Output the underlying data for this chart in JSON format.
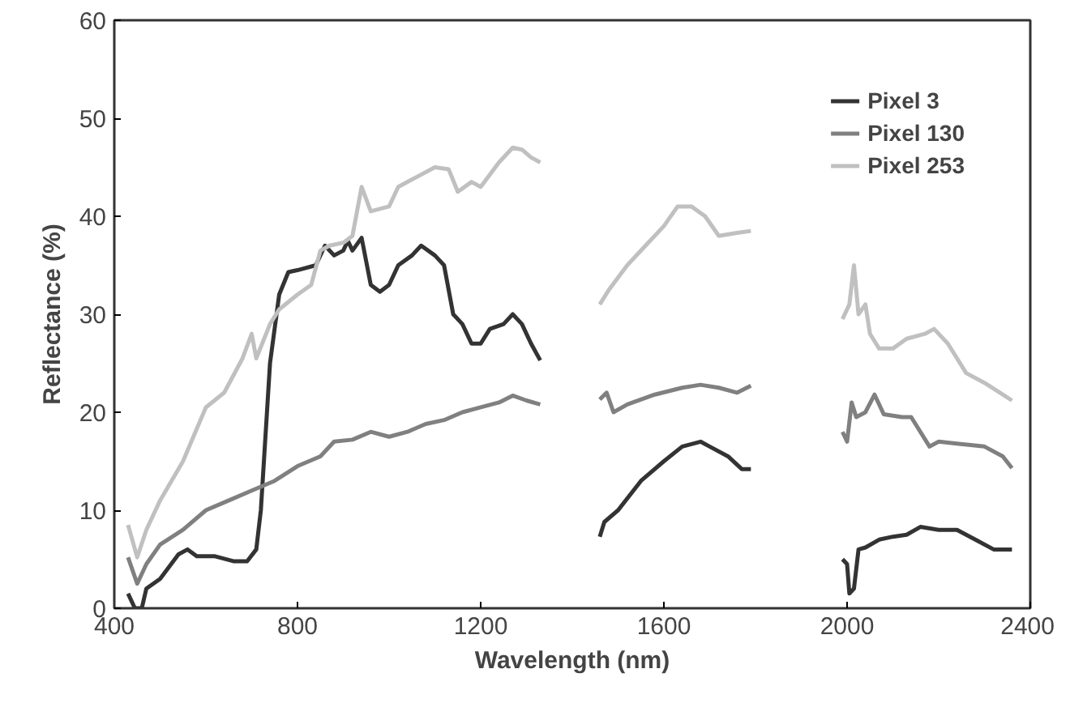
{
  "chart_data": {
    "type": "line",
    "xlabel": "Wavelength (nm)",
    "ylabel": "Reflectance (%)",
    "xlim": [
      400,
      2400
    ],
    "ylim": [
      0,
      60
    ],
    "xticks": [
      400,
      800,
      1200,
      1600,
      2000,
      2400
    ],
    "yticks": [
      0,
      10,
      20,
      30,
      40,
      50,
      60
    ],
    "grid": false,
    "legend": "top right",
    "marker": "none",
    "line_style": "solid",
    "series": [
      {
        "name": "Pixel 3",
        "color": "#333333",
        "x": [
          430,
          445,
          460,
          470,
          500,
          540,
          560,
          580,
          620,
          660,
          690,
          710,
          720,
          740,
          760,
          780,
          800,
          840,
          860,
          880,
          900,
          910,
          920,
          940,
          960,
          980,
          1000,
          1020,
          1050,
          1070,
          1100,
          1120,
          1140,
          1160,
          1180,
          1200,
          1220,
          1250,
          1270,
          1290,
          1310,
          1330,
          1400,
          1460,
          1470,
          1500,
          1550,
          1600,
          1640,
          1680,
          1700,
          1740,
          1770,
          1790,
          1900,
          1990,
          2000,
          2005,
          2015,
          2025,
          2040,
          2070,
          2100,
          2130,
          2160,
          2200,
          2240,
          2280,
          2320,
          2340,
          2360
        ],
        "values": [
          1.5,
          0,
          0,
          2,
          3,
          5.5,
          6,
          5.3,
          5.3,
          4.8,
          4.8,
          6,
          10,
          25,
          32,
          34.3,
          34.5,
          35,
          37,
          36,
          36.5,
          37.5,
          36.5,
          37.8,
          33,
          32.3,
          33,
          35,
          36,
          37,
          36,
          35,
          30,
          29,
          27,
          27,
          28.5,
          29,
          30,
          29,
          27,
          25.3,
          null,
          7.3,
          8.8,
          10,
          13,
          15,
          16.5,
          17,
          16.5,
          15.5,
          14.2,
          14.2,
          null,
          5,
          4.5,
          1.5,
          2,
          6,
          6.2,
          7,
          7.3,
          7.5,
          8.3,
          8,
          8,
          7,
          6,
          6,
          6
        ]
      },
      {
        "name": "Pixel 130",
        "color": "#808080",
        "x": [
          430,
          450,
          470,
          500,
          550,
          600,
          650,
          700,
          750,
          800,
          850,
          880,
          920,
          960,
          1000,
          1040,
          1080,
          1120,
          1160,
          1200,
          1240,
          1270,
          1300,
          1330,
          1400,
          1460,
          1475,
          1490,
          1520,
          1580,
          1640,
          1680,
          1720,
          1760,
          1790,
          1900,
          1990,
          2000,
          2010,
          2020,
          2040,
          2060,
          2080,
          2120,
          2140,
          2180,
          2200,
          2240,
          2300,
          2340,
          2360
        ],
        "values": [
          5.2,
          2.5,
          4.5,
          6.5,
          8,
          10,
          11,
          12,
          13,
          14.5,
          15.5,
          17,
          17.2,
          18,
          17.5,
          18,
          18.8,
          19.2,
          20,
          20.5,
          21,
          21.7,
          21.2,
          20.8,
          null,
          21.3,
          22,
          20,
          20.8,
          21.8,
          22.5,
          22.8,
          22.5,
          22,
          22.7,
          null,
          18,
          17,
          21,
          19.5,
          20,
          21.8,
          19.8,
          19.5,
          19.5,
          16.5,
          17,
          16.8,
          16.5,
          15.5,
          14.3
        ]
      },
      {
        "name": "Pixel 253",
        "color": "#c0c0c0",
        "x": [
          430,
          450,
          470,
          500,
          550,
          600,
          640,
          680,
          700,
          710,
          740,
          760,
          800,
          830,
          850,
          870,
          900,
          920,
          940,
          960,
          1000,
          1020,
          1060,
          1100,
          1130,
          1150,
          1180,
          1200,
          1240,
          1270,
          1290,
          1310,
          1330,
          1400,
          1460,
          1480,
          1520,
          1560,
          1600,
          1630,
          1660,
          1690,
          1720,
          1760,
          1790,
          1900,
          1990,
          2005,
          2015,
          2025,
          2040,
          2050,
          2070,
          2100,
          2130,
          2170,
          2190,
          2220,
          2260,
          2300,
          2340,
          2360
        ],
        "values": [
          8.5,
          5.2,
          8,
          11,
          15,
          20.5,
          22,
          25.5,
          28,
          25.5,
          29,
          30.5,
          32,
          33,
          36.5,
          37,
          37.3,
          38,
          43,
          40.5,
          41,
          43,
          44,
          45,
          44.8,
          42.5,
          43.5,
          43,
          45.5,
          47,
          46.8,
          46,
          45.5,
          null,
          31,
          32.5,
          35,
          37,
          39,
          41,
          41,
          40,
          38,
          38.3,
          38.5,
          null,
          29.5,
          31,
          35,
          30,
          31,
          28,
          26.5,
          26.5,
          27.5,
          28,
          28.5,
          27,
          24,
          23,
          21.8,
          21.2
        ]
      }
    ]
  }
}
